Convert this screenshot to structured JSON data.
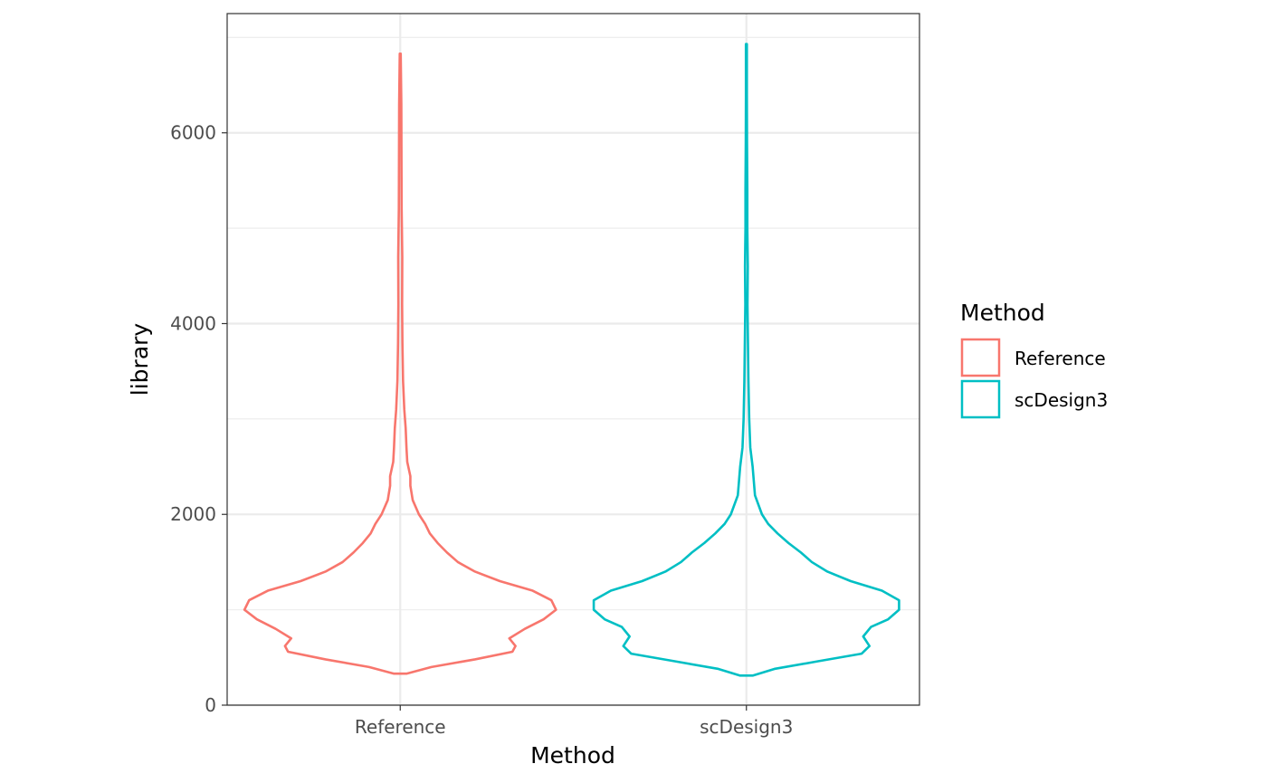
{
  "chart_data": {
    "type": "violin",
    "xlabel": "Method",
    "ylabel": "library",
    "categories": [
      "Reference",
      "scDesign3"
    ],
    "ylim": [
      0,
      7250
    ],
    "yticks": [
      0,
      2000,
      4000,
      6000
    ],
    "ytick_labels": [
      "0",
      "2000",
      "4000",
      "6000"
    ],
    "grid": true,
    "legend": {
      "title": "Method",
      "position": "right",
      "entries": [
        {
          "label": "Reference",
          "color": "#F8766D"
        },
        {
          "label": "scDesign3",
          "color": "#00BFC4"
        }
      ]
    },
    "series": [
      {
        "name": "Reference",
        "color": "#F8766D",
        "min": 330,
        "max": 6830,
        "density": [
          [
            330,
            0.04
          ],
          [
            400,
            0.2
          ],
          [
            480,
            0.48
          ],
          [
            560,
            0.72
          ],
          [
            620,
            0.74
          ],
          [
            700,
            0.7
          ],
          [
            800,
            0.8
          ],
          [
            900,
            0.92
          ],
          [
            1000,
            1.0
          ],
          [
            1100,
            0.97
          ],
          [
            1200,
            0.85
          ],
          [
            1300,
            0.64
          ],
          [
            1400,
            0.48
          ],
          [
            1500,
            0.37
          ],
          [
            1600,
            0.3
          ],
          [
            1700,
            0.24
          ],
          [
            1800,
            0.19
          ],
          [
            1900,
            0.16
          ],
          [
            2000,
            0.12
          ],
          [
            2150,
            0.08
          ],
          [
            2300,
            0.065
          ],
          [
            2400,
            0.065
          ],
          [
            2550,
            0.045
          ],
          [
            2700,
            0.04
          ],
          [
            2900,
            0.035
          ],
          [
            3100,
            0.026
          ],
          [
            3400,
            0.018
          ],
          [
            3800,
            0.014
          ],
          [
            4200,
            0.012
          ],
          [
            4700,
            0.013
          ],
          [
            5200,
            0.009
          ],
          [
            5700,
            0.008
          ],
          [
            6300,
            0.007
          ],
          [
            6830,
            0.003
          ]
        ]
      },
      {
        "name": "scDesign3",
        "color": "#00BFC4",
        "min": 310,
        "max": 6930,
        "density": [
          [
            310,
            0.04
          ],
          [
            380,
            0.18
          ],
          [
            460,
            0.46
          ],
          [
            540,
            0.74
          ],
          [
            620,
            0.79
          ],
          [
            720,
            0.75
          ],
          [
            820,
            0.8
          ],
          [
            900,
            0.91
          ],
          [
            1000,
            0.98
          ],
          [
            1100,
            0.98
          ],
          [
            1200,
            0.87
          ],
          [
            1300,
            0.67
          ],
          [
            1400,
            0.52
          ],
          [
            1500,
            0.42
          ],
          [
            1600,
            0.35
          ],
          [
            1700,
            0.27
          ],
          [
            1800,
            0.2
          ],
          [
            1900,
            0.14
          ],
          [
            2000,
            0.1
          ],
          [
            2200,
            0.055
          ],
          [
            2400,
            0.045
          ],
          [
            2500,
            0.04
          ],
          [
            2700,
            0.025
          ],
          [
            3000,
            0.018
          ],
          [
            3400,
            0.013
          ],
          [
            3800,
            0.01
          ],
          [
            4200,
            0.007
          ],
          [
            4600,
            0.009
          ],
          [
            5000,
            0.006
          ],
          [
            5400,
            0.006
          ],
          [
            5900,
            0.004
          ],
          [
            6400,
            0.003
          ],
          [
            6930,
            0.003
          ]
        ]
      }
    ]
  }
}
